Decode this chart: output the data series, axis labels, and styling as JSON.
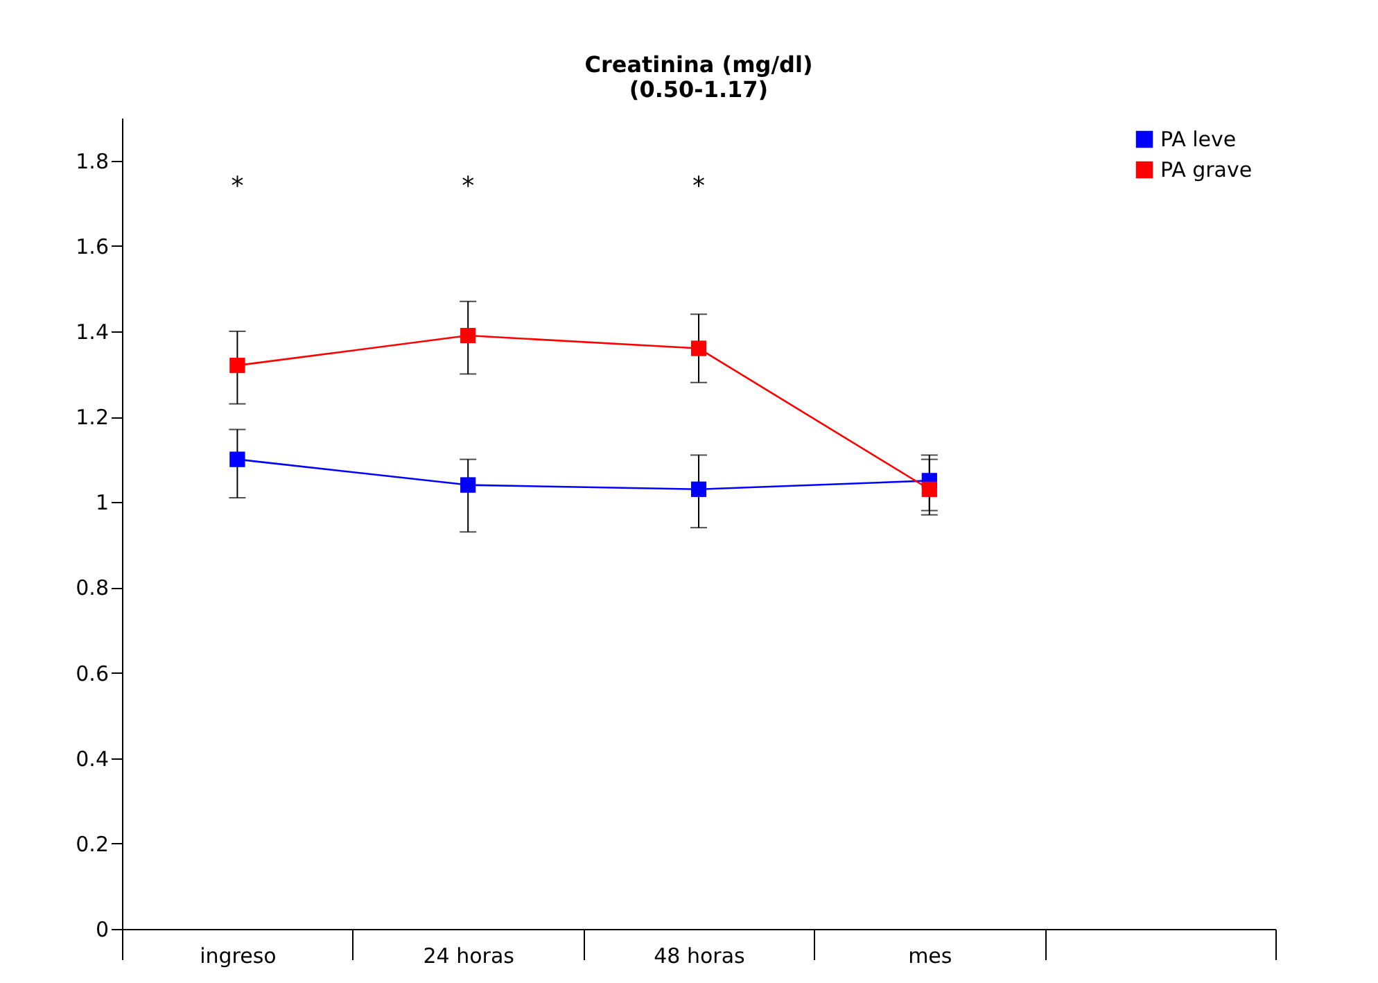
{
  "chart_data": {
    "type": "line",
    "title": [
      "Creatinina  (mg/dl)",
      "(0.50-1.17)"
    ],
    "categories": [
      "ingreso",
      "24 horas",
      "48 horas",
      "mes",
      null
    ],
    "series": [
      {
        "name": "PA leve",
        "color": "#0000ff",
        "values": [
          1.1,
          1.04,
          1.03,
          1.05,
          null
        ],
        "errors": [
          [
            1.01,
            1.17
          ],
          [
            0.93,
            1.1
          ],
          [
            0.94,
            1.11
          ],
          [
            0.98,
            1.11
          ],
          null
        ]
      },
      {
        "name": "PA grave",
        "color": "#ff0000",
        "values": [
          1.32,
          1.39,
          1.36,
          1.03,
          null
        ],
        "errors": [
          [
            1.23,
            1.4
          ],
          [
            1.3,
            1.47
          ],
          [
            1.28,
            1.44
          ],
          [
            0.97,
            1.1
          ],
          null
        ]
      }
    ],
    "annotations": [
      "*",
      "*",
      "*"
    ],
    "ylim": [
      0,
      1.9
    ],
    "yticks": [
      {
        "value": 0,
        "label": "0"
      },
      0.2,
      0.4,
      0.6,
      0.8,
      {
        "value": 1,
        "label": "1"
      },
      1.2,
      1.4,
      1.6,
      1.8
    ],
    "grid": false,
    "legend": "top right",
    "marker": "square",
    "line_style": "solid"
  }
}
